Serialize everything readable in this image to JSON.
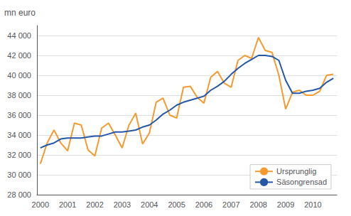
{
  "chart_data": {
    "type": "line",
    "ylabel": "mn euro",
    "categories": [
      "2000",
      null,
      null,
      null,
      "2001",
      null,
      null,
      null,
      "2002",
      null,
      null,
      null,
      "2003",
      null,
      null,
      null,
      "2004",
      null,
      null,
      null,
      "2005",
      null,
      null,
      null,
      "2006",
      null,
      null,
      null,
      "2007",
      null,
      null,
      null,
      "2008",
      null,
      null,
      null,
      "2009",
      null,
      null,
      null,
      "2010",
      null,
      null,
      null
    ],
    "series": [
      {
        "name": "Ursprunglig",
        "color": "#f59a2f",
        "values": [
          31100,
          33200,
          34500,
          33200,
          32400,
          35200,
          35000,
          32500,
          31900,
          34700,
          35200,
          34000,
          32700,
          35000,
          36200,
          33100,
          34200,
          37300,
          37700,
          36000,
          35700,
          38800,
          38900,
          37800,
          37200,
          39800,
          40400,
          39200,
          38800,
          41500,
          42000,
          41700,
          43800,
          42500,
          42300,
          40000,
          36600,
          38300,
          38500,
          38000,
          38000,
          38400,
          40000,
          40100
        ]
      },
      {
        "name": "Säsongrensad",
        "color": "#2457a8",
        "values": [
          32700,
          33000,
          33200,
          33600,
          33700,
          33700,
          33700,
          33800,
          33900,
          33900,
          34100,
          34300,
          34300,
          34400,
          34500,
          34800,
          35000,
          35500,
          36100,
          36500,
          37000,
          37300,
          37500,
          37700,
          37900,
          38500,
          38900,
          39400,
          40100,
          40700,
          41200,
          41600,
          42000,
          42000,
          41900,
          41500,
          39500,
          38200,
          38200,
          38400,
          38500,
          38700,
          39300,
          39700
        ]
      }
    ],
    "ylim": [
      28000,
      45000
    ],
    "yticks": [
      {
        "value": 28000,
        "label": "28 000"
      },
      {
        "value": 30000,
        "label": "30 000"
      },
      {
        "value": 32000,
        "label": "32 000"
      },
      {
        "value": 34000,
        "label": "34 000"
      },
      {
        "value": 36000,
        "label": "36 000"
      },
      {
        "value": 38000,
        "label": "38 000"
      },
      {
        "value": 40000,
        "label": "40 000"
      },
      {
        "value": 42000,
        "label": "42 000"
      },
      {
        "value": 44000,
        "label": "44 000"
      }
    ],
    "grid": true,
    "legend": "lower right"
  }
}
